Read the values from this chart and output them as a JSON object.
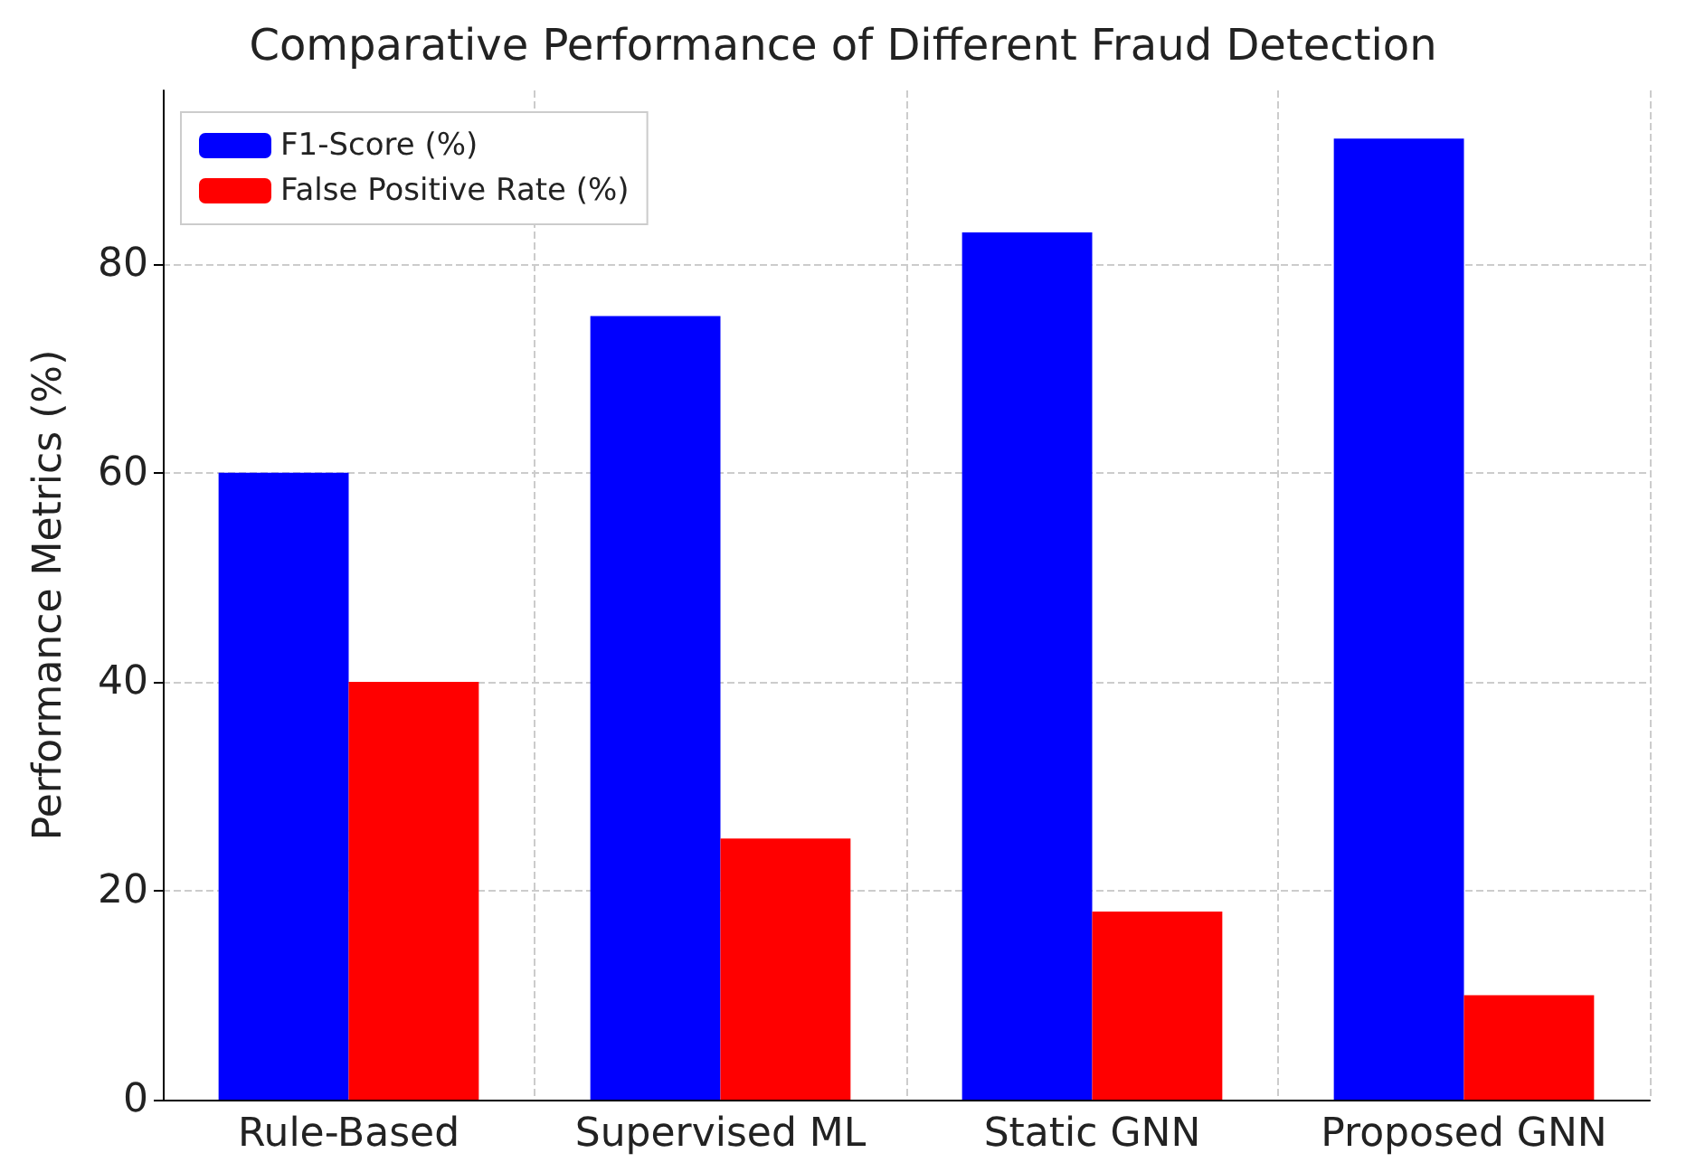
{
  "chart_data": {
    "type": "bar",
    "title": "Comparative Performance of Different Fraud Detection",
    "ylabel": "Performance Metrics (%)",
    "categories": [
      "Rule-Based",
      "Supervised ML",
      "Static GNN",
      "Proposed GNN"
    ],
    "series": [
      {
        "name": "F1-Score (%)",
        "color": "#0000ff",
        "values": [
          60,
          75,
          83,
          92
        ]
      },
      {
        "name": "False Positive Rate (%)",
        "color": "#ff0000",
        "values": [
          40,
          25,
          18,
          10
        ]
      }
    ],
    "ylim": [
      0,
      96.6
    ],
    "yticks": [
      0,
      20,
      40,
      60,
      80
    ],
    "grid": true,
    "legend": "top left"
  }
}
